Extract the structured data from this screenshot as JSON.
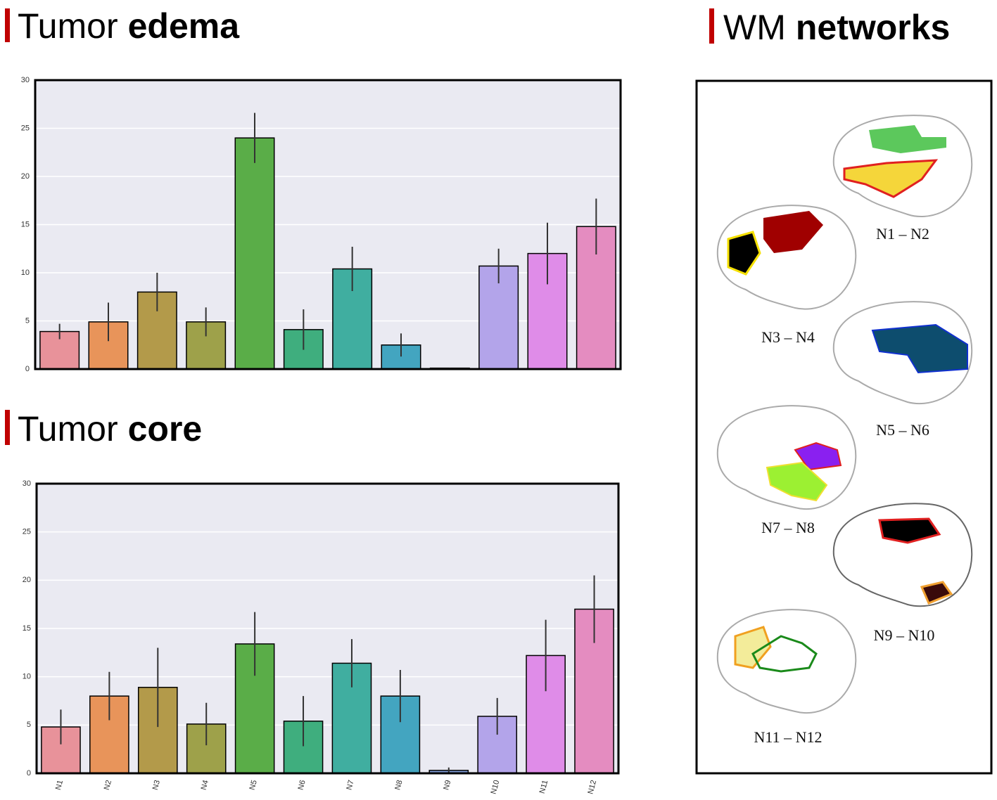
{
  "chart_data": [
    {
      "type": "bar",
      "title": {
        "regular": "Tumor",
        "bold": "edema"
      },
      "values": [
        3.9,
        4.9,
        8.0,
        4.9,
        24.0,
        4.1,
        10.4,
        2.5,
        0.1,
        10.7,
        12.0,
        14.8
      ],
      "errors": [
        0.8,
        2.0,
        2.0,
        1.5,
        2.6,
        2.1,
        2.3,
        1.2,
        0.05,
        1.8,
        3.2,
        2.9
      ],
      "colors": [
        "#e8929a",
        "#e8945a",
        "#b39a4a",
        "#9ea14a",
        "#5aad48",
        "#3fae7e",
        "#40aea0",
        "#43a5c0",
        "#7f9bd6",
        "#b3a4ea",
        "#df8ce8",
        "#e48cc0"
      ],
      "ylim": [
        0,
        30
      ],
      "yticks": [
        0,
        5,
        10,
        15,
        20,
        25,
        30
      ],
      "grid": true
    },
    {
      "type": "bar",
      "title": {
        "regular": "Tumor",
        "bold": "core"
      },
      "categories": [
        "N1",
        "N2",
        "N3",
        "N4",
        "N5",
        "N6",
        "N7",
        "N8",
        "N9",
        "N10",
        "N11",
        "N12"
      ],
      "values": [
        4.8,
        8.0,
        8.9,
        5.1,
        13.4,
        5.4,
        11.4,
        8.0,
        0.3,
        5.9,
        12.2,
        17.0
      ],
      "errors": [
        1.8,
        2.5,
        4.1,
        2.2,
        3.3,
        2.6,
        2.5,
        2.7,
        0.3,
        1.9,
        3.7,
        3.5
      ],
      "colors": [
        "#e8929a",
        "#e8945a",
        "#b39a4a",
        "#9ea14a",
        "#5aad48",
        "#3fae7e",
        "#40aea0",
        "#43a5c0",
        "#7f9bd6",
        "#b3a4ea",
        "#df8ce8",
        "#e48cc0"
      ],
      "ylim": [
        0,
        30
      ],
      "yticks": [
        0,
        5,
        10,
        15,
        20,
        25,
        30
      ],
      "grid": true
    }
  ],
  "wm_panel": {
    "title": {
      "regular": "WM",
      "bold": "networks"
    },
    "labels": [
      "N1 – N2",
      "N3 – N4",
      "N5 – N6",
      "N7 – N8",
      "N9 – N10",
      "N11 – N12"
    ]
  }
}
